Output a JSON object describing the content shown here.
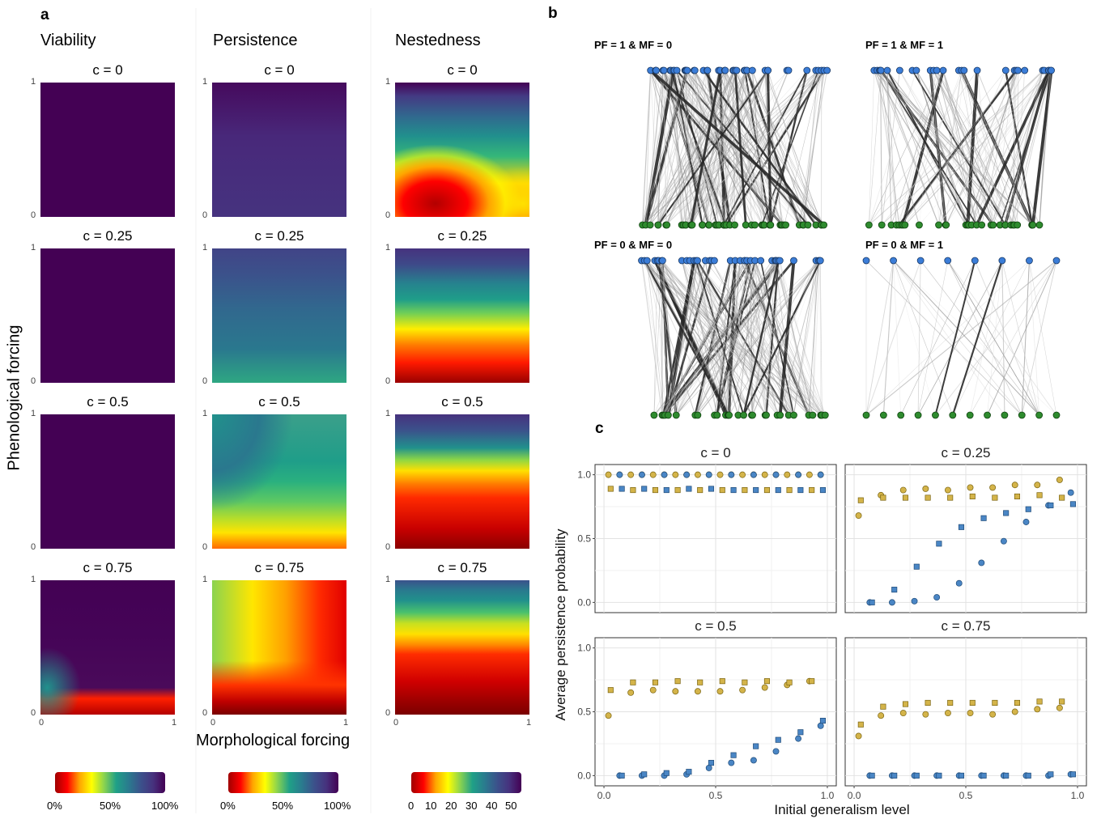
{
  "panel_a": {
    "letter": "a",
    "columns": [
      "Viability",
      "Persistence",
      "Nestedness"
    ],
    "rows": [
      "c = 0",
      "c = 0.25",
      "c = 0.5",
      "c = 0.75"
    ],
    "y_axis_title": "Phenological forcing",
    "x_axis_title": "Morphological forcing",
    "axis_ticks": {
      "min": "0",
      "max": "1"
    },
    "colorbars": [
      {
        "labels": [
          "0%",
          "50%",
          "100%"
        ]
      },
      {
        "labels": [
          "0%",
          "50%",
          "100%"
        ]
      },
      {
        "labels": [
          "0",
          "10",
          "20",
          "30",
          "40",
          "50"
        ]
      }
    ]
  },
  "panel_b": {
    "letter": "b",
    "networks": [
      {
        "title": "PF = 1 & MF = 0"
      },
      {
        "title": "PF = 1 & MF = 1"
      },
      {
        "title": "PF = 0 & MF = 0"
      },
      {
        "title": "PF = 0 & MF = 1"
      }
    ],
    "colors": {
      "top_nodes": "#3b7dd8",
      "bottom_nodes": "#2e8b2e"
    }
  },
  "panel_c": {
    "letter": "c",
    "colors": {
      "gold": "#d4b44a",
      "blue": "#4a86c5"
    }
  },
  "chart_data": [
    {
      "type": "heatmap",
      "panel": "a",
      "xlabel": "Morphological forcing",
      "ylabel": "Phenological forcing",
      "xlim": [
        0,
        1
      ],
      "ylim": [
        0,
        1
      ],
      "columns": [
        "Viability",
        "Persistence",
        "Nestedness"
      ],
      "facets": [
        "c = 0",
        "c = 0.25",
        "c = 0.5",
        "c = 0.75"
      ],
      "colorscale": "red-yellow-green-blue-purple"
    },
    {
      "type": "scatter",
      "panel": "c",
      "xlabel": "Initial generalism level",
      "ylabel": "Average persistence probability",
      "xlim": [
        0,
        1
      ],
      "ylim": [
        0,
        1
      ],
      "xticks": [
        "0.0",
        "0.5",
        "1.0"
      ],
      "yticks": [
        "0.0",
        "0.5",
        "1.0"
      ],
      "facets": [
        {
          "title": "c = 0",
          "gold_circle": [
            [
              0.02,
              1.0
            ],
            [
              0.07,
              1.0
            ],
            [
              0.12,
              1.0
            ],
            [
              0.17,
              1.0
            ],
            [
              0.22,
              1.0
            ],
            [
              0.27,
              1.0
            ],
            [
              0.32,
              1.0
            ],
            [
              0.37,
              1.0
            ],
            [
              0.42,
              1.0
            ],
            [
              0.47,
              1.0
            ],
            [
              0.52,
              1.0
            ],
            [
              0.57,
              1.0
            ],
            [
              0.62,
              1.0
            ],
            [
              0.67,
              1.0
            ],
            [
              0.72,
              1.0
            ],
            [
              0.77,
              1.0
            ],
            [
              0.82,
              1.0
            ],
            [
              0.87,
              1.0
            ],
            [
              0.92,
              1.0
            ],
            [
              0.97,
              1.0
            ]
          ],
          "blue_circle": [
            [
              0.07,
              1.0
            ],
            [
              0.17,
              1.0
            ],
            [
              0.27,
              1.0
            ],
            [
              0.37,
              1.0
            ],
            [
              0.47,
              1.0
            ],
            [
              0.57,
              1.0
            ],
            [
              0.67,
              1.0
            ],
            [
              0.77,
              1.0
            ],
            [
              0.87,
              1.0
            ],
            [
              0.97,
              1.0
            ]
          ],
          "gold_square": [
            [
              0.03,
              0.89
            ],
            [
              0.13,
              0.88
            ],
            [
              0.23,
              0.88
            ],
            [
              0.33,
              0.88
            ],
            [
              0.43,
              0.88
            ],
            [
              0.53,
              0.88
            ],
            [
              0.63,
              0.88
            ],
            [
              0.73,
              0.88
            ],
            [
              0.83,
              0.88
            ],
            [
              0.93,
              0.88
            ]
          ],
          "blue_square": [
            [
              0.08,
              0.89
            ],
            [
              0.18,
              0.89
            ],
            [
              0.28,
              0.88
            ],
            [
              0.38,
              0.89
            ],
            [
              0.48,
              0.89
            ],
            [
              0.58,
              0.88
            ],
            [
              0.68,
              0.88
            ],
            [
              0.78,
              0.88
            ],
            [
              0.88,
              0.88
            ],
            [
              0.98,
              0.88
            ]
          ]
        },
        {
          "title": "c = 0.25",
          "gold_circle": [
            [
              0.02,
              0.68
            ],
            [
              0.12,
              0.84
            ],
            [
              0.22,
              0.88
            ],
            [
              0.32,
              0.89
            ],
            [
              0.42,
              0.88
            ],
            [
              0.52,
              0.9
            ],
            [
              0.62,
              0.9
            ],
            [
              0.72,
              0.92
            ],
            [
              0.82,
              0.92
            ],
            [
              0.92,
              0.96
            ]
          ],
          "blue_circle": [
            [
              0.07,
              0.0
            ],
            [
              0.17,
              0.0
            ],
            [
              0.27,
              0.01
            ],
            [
              0.37,
              0.04
            ],
            [
              0.47,
              0.15
            ],
            [
              0.57,
              0.31
            ],
            [
              0.67,
              0.48
            ],
            [
              0.77,
              0.63
            ],
            [
              0.87,
              0.76
            ],
            [
              0.97,
              0.86
            ]
          ],
          "gold_square": [
            [
              0.03,
              0.8
            ],
            [
              0.13,
              0.82
            ],
            [
              0.23,
              0.82
            ],
            [
              0.33,
              0.82
            ],
            [
              0.43,
              0.82
            ],
            [
              0.53,
              0.83
            ],
            [
              0.63,
              0.82
            ],
            [
              0.73,
              0.83
            ],
            [
              0.83,
              0.84
            ],
            [
              0.93,
              0.82
            ]
          ],
          "blue_square": [
            [
              0.08,
              0.0
            ],
            [
              0.18,
              0.1
            ],
            [
              0.28,
              0.28
            ],
            [
              0.38,
              0.46
            ],
            [
              0.48,
              0.59
            ],
            [
              0.58,
              0.66
            ],
            [
              0.68,
              0.7
            ],
            [
              0.78,
              0.73
            ],
            [
              0.88,
              0.76
            ],
            [
              0.98,
              0.77
            ]
          ]
        },
        {
          "title": "c = 0.5",
          "gold_circle": [
            [
              0.02,
              0.47
            ],
            [
              0.12,
              0.65
            ],
            [
              0.22,
              0.67
            ],
            [
              0.32,
              0.66
            ],
            [
              0.42,
              0.66
            ],
            [
              0.52,
              0.66
            ],
            [
              0.62,
              0.67
            ],
            [
              0.72,
              0.69
            ],
            [
              0.82,
              0.71
            ],
            [
              0.92,
              0.74
            ]
          ],
          "blue_circle": [
            [
              0.07,
              0.0
            ],
            [
              0.17,
              0.0
            ],
            [
              0.27,
              0.0
            ],
            [
              0.37,
              0.01
            ],
            [
              0.47,
              0.06
            ],
            [
              0.57,
              0.1
            ],
            [
              0.67,
              0.12
            ],
            [
              0.77,
              0.19
            ],
            [
              0.87,
              0.29
            ],
            [
              0.97,
              0.39
            ]
          ],
          "gold_square": [
            [
              0.03,
              0.67
            ],
            [
              0.13,
              0.73
            ],
            [
              0.23,
              0.73
            ],
            [
              0.33,
              0.74
            ],
            [
              0.43,
              0.73
            ],
            [
              0.53,
              0.74
            ],
            [
              0.63,
              0.73
            ],
            [
              0.73,
              0.74
            ],
            [
              0.83,
              0.73
            ],
            [
              0.93,
              0.74
            ]
          ],
          "blue_square": [
            [
              0.08,
              0.0
            ],
            [
              0.18,
              0.01
            ],
            [
              0.28,
              0.02
            ],
            [
              0.38,
              0.03
            ],
            [
              0.48,
              0.1
            ],
            [
              0.58,
              0.16
            ],
            [
              0.68,
              0.23
            ],
            [
              0.78,
              0.28
            ],
            [
              0.88,
              0.34
            ],
            [
              0.98,
              0.43
            ]
          ]
        },
        {
          "title": "c = 0.75",
          "gold_circle": [
            [
              0.02,
              0.31
            ],
            [
              0.12,
              0.47
            ],
            [
              0.22,
              0.49
            ],
            [
              0.32,
              0.48
            ],
            [
              0.42,
              0.49
            ],
            [
              0.52,
              0.49
            ],
            [
              0.62,
              0.48
            ],
            [
              0.72,
              0.5
            ],
            [
              0.82,
              0.52
            ],
            [
              0.92,
              0.53
            ]
          ],
          "blue_circle": [
            [
              0.07,
              0.0
            ],
            [
              0.17,
              0.0
            ],
            [
              0.27,
              0.0
            ],
            [
              0.37,
              0.0
            ],
            [
              0.47,
              0.0
            ],
            [
              0.57,
              0.0
            ],
            [
              0.67,
              0.0
            ],
            [
              0.77,
              0.0
            ],
            [
              0.87,
              0.0
            ],
            [
              0.97,
              0.01
            ]
          ],
          "gold_square": [
            [
              0.03,
              0.4
            ],
            [
              0.13,
              0.54
            ],
            [
              0.23,
              0.56
            ],
            [
              0.33,
              0.57
            ],
            [
              0.43,
              0.57
            ],
            [
              0.53,
              0.57
            ],
            [
              0.63,
              0.57
            ],
            [
              0.73,
              0.57
            ],
            [
              0.83,
              0.58
            ],
            [
              0.93,
              0.58
            ]
          ],
          "blue_square": [
            [
              0.08,
              0.0
            ],
            [
              0.18,
              0.0
            ],
            [
              0.28,
              0.0
            ],
            [
              0.38,
              0.0
            ],
            [
              0.48,
              0.0
            ],
            [
              0.58,
              0.0
            ],
            [
              0.68,
              0.0
            ],
            [
              0.78,
              0.0
            ],
            [
              0.88,
              0.01
            ],
            [
              0.98,
              0.01
            ]
          ]
        }
      ]
    }
  ]
}
